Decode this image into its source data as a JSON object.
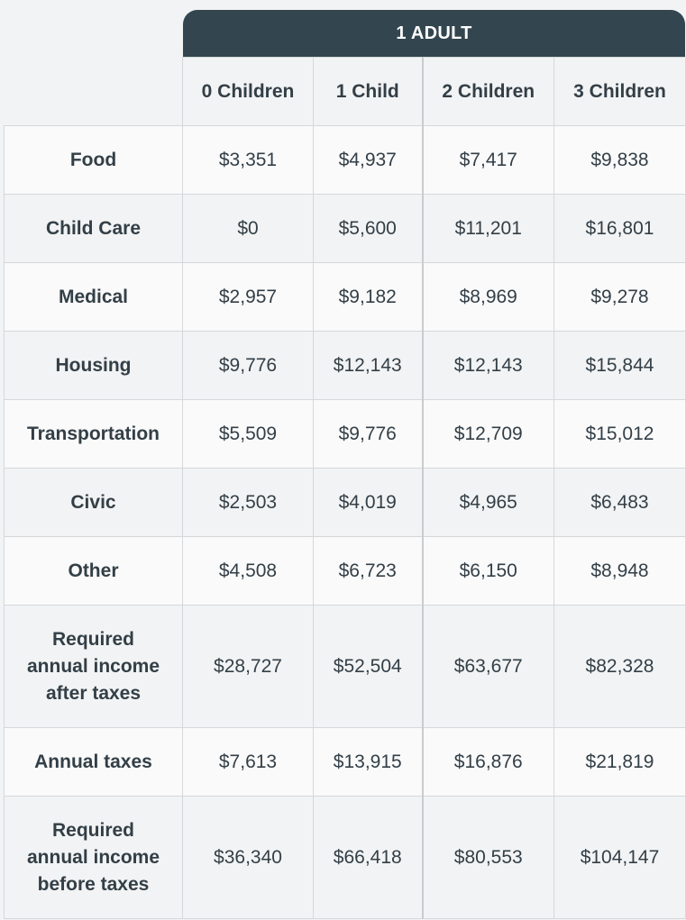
{
  "table": {
    "group_title": "1 ADULT",
    "columns": [
      "0 Children",
      "1 Child",
      "2 Children",
      "3 Children"
    ],
    "rows": [
      {
        "label": "Food",
        "values": [
          "$3,351",
          "$4,937",
          "$7,417",
          "$9,838"
        ]
      },
      {
        "label": "Child Care",
        "values": [
          "$0",
          "$5,600",
          "$11,201",
          "$16,801"
        ]
      },
      {
        "label": "Medical",
        "values": [
          "$2,957",
          "$9,182",
          "$8,969",
          "$9,278"
        ]
      },
      {
        "label": "Housing",
        "values": [
          "$9,776",
          "$12,143",
          "$12,143",
          "$15,844"
        ]
      },
      {
        "label": "Transportation",
        "values": [
          "$5,509",
          "$9,776",
          "$12,709",
          "$15,012"
        ]
      },
      {
        "label": "Civic",
        "values": [
          "$2,503",
          "$4,019",
          "$4,965",
          "$6,483"
        ]
      },
      {
        "label": "Other",
        "values": [
          "$4,508",
          "$6,723",
          "$6,150",
          "$8,948"
        ]
      },
      {
        "label": "Required annual income after taxes",
        "values": [
          "$28,727",
          "$52,504",
          "$63,677",
          "$82,328"
        ]
      },
      {
        "label": "Annual taxes",
        "values": [
          "$7,613",
          "$13,915",
          "$16,876",
          "$21,819"
        ]
      },
      {
        "label": "Required annual income before taxes",
        "values": [
          "$36,340",
          "$66,418",
          "$80,553",
          "$104,147"
        ]
      }
    ]
  },
  "colors": {
    "header_bg": "#334650",
    "header_text": "#ffffff",
    "text": "#333f47",
    "row_light": "#fafafa",
    "row_dark": "#f2f3f4",
    "border": "#d5d8db"
  }
}
